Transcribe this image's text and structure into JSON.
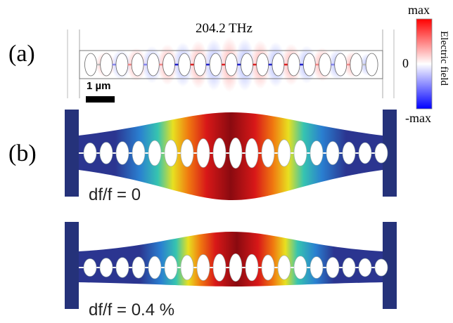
{
  "panel_a": {
    "label": "(a)",
    "frequency": "204.2 THz",
    "scale_bar_label": "1 µm"
  },
  "colorbar": {
    "max_label": "max",
    "zero_label": "0",
    "min_label": "-max",
    "title": "Electric field",
    "colors": [
      "#ff0000",
      "#ffffff",
      "#0000ff"
    ]
  },
  "panel_b": {
    "label": "(b)",
    "top_caption": "df/f = 0",
    "bottom_caption": "df/f = 0.4 %"
  },
  "colors": {
    "anchor": "#25327a",
    "cold": "#2b3590",
    "hot": "#8a0a10"
  }
}
